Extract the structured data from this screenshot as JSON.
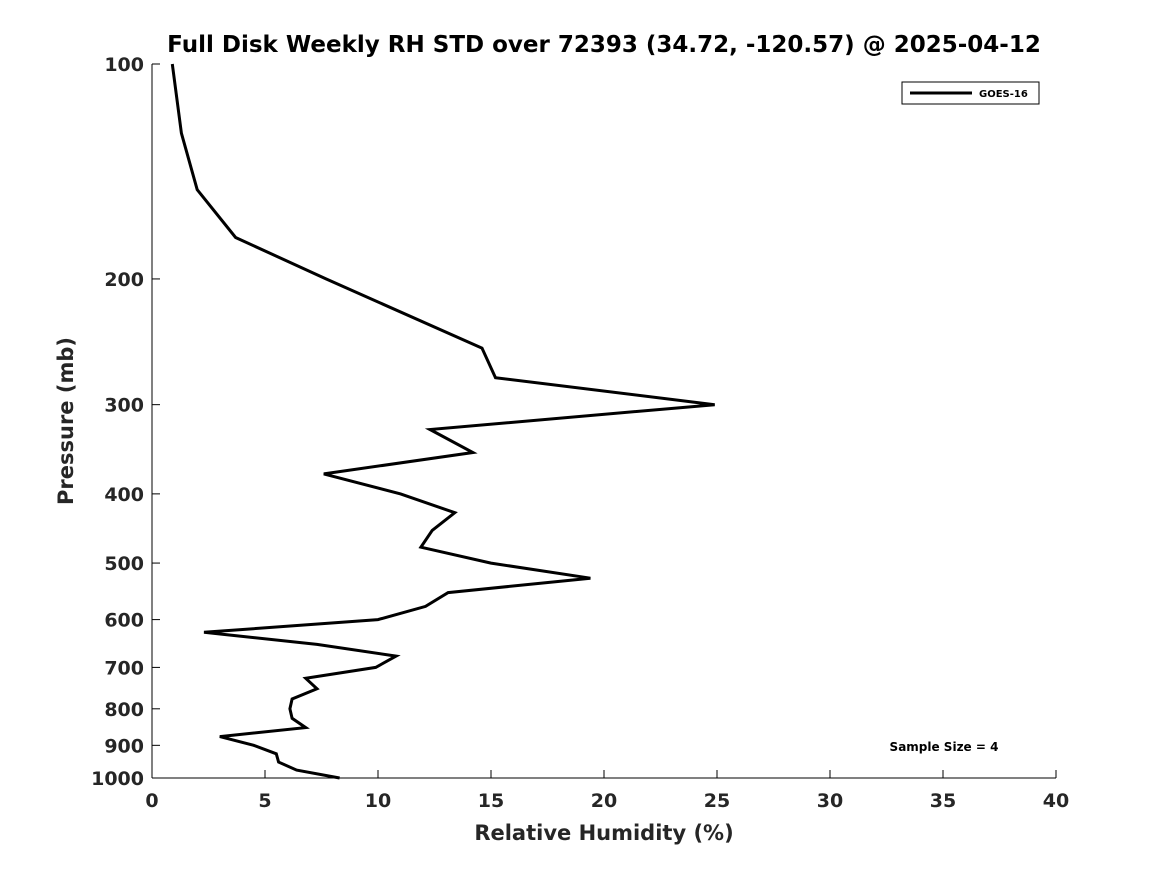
{
  "chart_data": {
    "type": "line",
    "title": "Full Disk Weekly RH STD over 72393 (34.72, -120.57) @ 2025-04-12",
    "xlabel": "Relative Humidity (%)",
    "ylabel": "Pressure (mb)",
    "xlim": [
      0,
      40
    ],
    "ylim": [
      100,
      1000
    ],
    "yscale": "log",
    "y_inverted": true,
    "x_ticks": [
      0,
      5,
      10,
      15,
      20,
      25,
      30,
      35,
      40
    ],
    "y_ticks": [
      100,
      200,
      300,
      400,
      500,
      600,
      700,
      800,
      900,
      1000
    ],
    "legend_position": "top-right",
    "grid": false,
    "annotation": "Sample Size = 4",
    "series": [
      {
        "name": "GOES-16",
        "color": "#000000",
        "points": [
          {
            "x": 0.9,
            "y": 100
          },
          {
            "x": 1.3,
            "y": 125
          },
          {
            "x": 2.0,
            "y": 150
          },
          {
            "x": 3.7,
            "y": 175
          },
          {
            "x": 7.7,
            "y": 200
          },
          {
            "x": 14.6,
            "y": 250
          },
          {
            "x": 15.2,
            "y": 275
          },
          {
            "x": 24.9,
            "y": 300
          },
          {
            "x": 12.3,
            "y": 325
          },
          {
            "x": 14.2,
            "y": 350
          },
          {
            "x": 7.6,
            "y": 375
          },
          {
            "x": 11.0,
            "y": 400
          },
          {
            "x": 13.4,
            "y": 425
          },
          {
            "x": 12.4,
            "y": 450
          },
          {
            "x": 11.9,
            "y": 475
          },
          {
            "x": 15.0,
            "y": 500
          },
          {
            "x": 19.4,
            "y": 525
          },
          {
            "x": 13.1,
            "y": 550
          },
          {
            "x": 12.1,
            "y": 575
          },
          {
            "x": 10.0,
            "y": 600
          },
          {
            "x": 2.3,
            "y": 625
          },
          {
            "x": 7.3,
            "y": 650
          },
          {
            "x": 10.8,
            "y": 675
          },
          {
            "x": 9.9,
            "y": 700
          },
          {
            "x": 6.8,
            "y": 725
          },
          {
            "x": 7.3,
            "y": 750
          },
          {
            "x": 6.2,
            "y": 775
          },
          {
            "x": 6.1,
            "y": 800
          },
          {
            "x": 6.2,
            "y": 825
          },
          {
            "x": 6.8,
            "y": 850
          },
          {
            "x": 3.0,
            "y": 875
          },
          {
            "x": 4.5,
            "y": 900
          },
          {
            "x": 5.5,
            "y": 925
          },
          {
            "x": 5.6,
            "y": 950
          },
          {
            "x": 6.4,
            "y": 975
          },
          {
            "x": 8.3,
            "y": 1000
          }
        ]
      }
    ]
  }
}
